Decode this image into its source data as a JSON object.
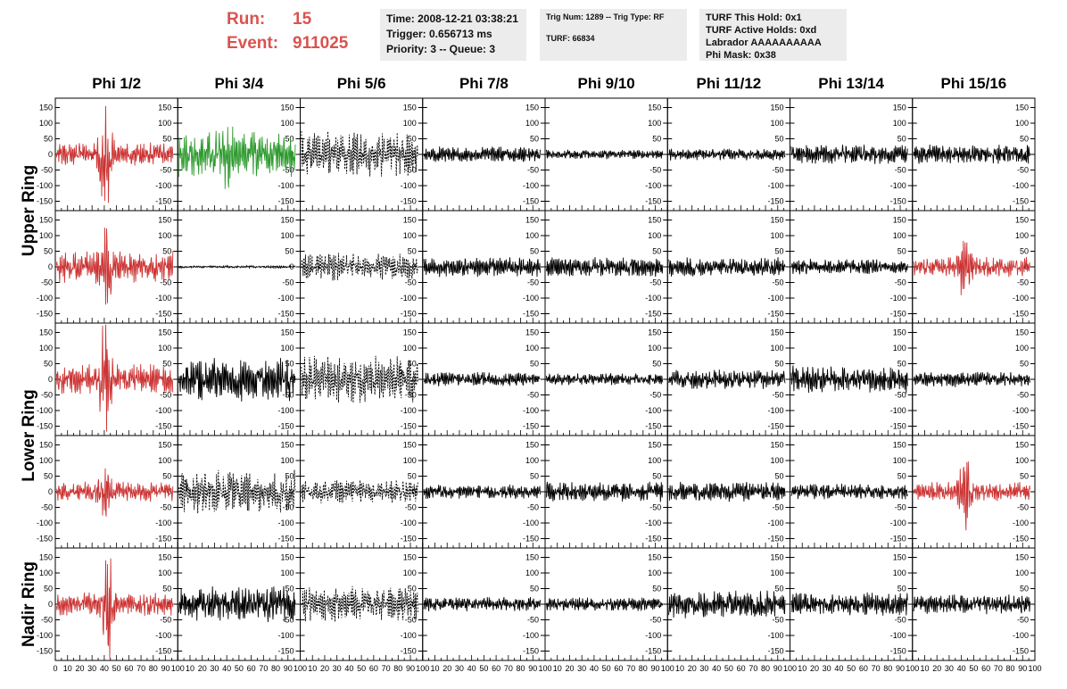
{
  "header": {
    "run_label": "Run:",
    "run_value": "15",
    "event_label": "Event:",
    "event_value": "911025",
    "time": "Time: 2008-12-21 03:38:21",
    "trigger": "Trigger: 0.656713 ms",
    "priority": "Priority: 3 -- Queue: 3",
    "trig_num": "Trig Num: 1289 -- Trig Type: RF",
    "turf": "TURF: 66834",
    "turf_hold": "TURF This Hold: 0x1",
    "turf_active": "TURF Active Holds: 0xd",
    "labrador": "Labrador AAAAAAAAAA",
    "phi_mask": "Phi Mask: 0x38"
  },
  "colors": {
    "red": "#cc3333",
    "green": "#2e9a2e",
    "black": "#000000"
  },
  "chart_data": {
    "type": "line",
    "columns": [
      "Phi 1/2",
      "Phi 3/4",
      "Phi 5/6",
      "Phi 7/8",
      "Phi 9/10",
      "Phi 11/12",
      "Phi 13/14",
      "Phi 15/16"
    ],
    "rows": [
      "Upper Ring",
      "Upper Ring",
      "Lower Ring",
      "Lower Ring",
      "Nadir Ring"
    ],
    "row_labels": [
      "Upper Ring",
      "Lower Ring",
      "Nadir Ring"
    ],
    "xlim": [
      0,
      100
    ],
    "ylim": [
      -180,
      180
    ],
    "y_ticks": [
      -150,
      -100,
      -50,
      0,
      50,
      100,
      150
    ],
    "x_ticks": [
      0,
      10,
      20,
      30,
      40,
      50,
      60,
      70,
      80,
      90,
      100
    ],
    "panels": [
      [
        {
          "color": "red",
          "style": "solid",
          "amp": 30,
          "burst": 130,
          "center": 40,
          "seed": 1
        },
        {
          "color": "green",
          "style": "solid",
          "amp": 60,
          "burst": 40,
          "center": 40,
          "seed": 2
        },
        {
          "color": "black",
          "style": "dashed",
          "amp": 60,
          "burst": 0,
          "center": 50,
          "seed": 3
        },
        {
          "color": "black",
          "style": "solid",
          "amp": 20,
          "burst": 0,
          "center": 50,
          "seed": 4
        },
        {
          "color": "black",
          "style": "solid",
          "amp": 12,
          "burst": 0,
          "center": 50,
          "seed": 5
        },
        {
          "color": "black",
          "style": "solid",
          "amp": 15,
          "burst": 0,
          "center": 50,
          "seed": 6
        },
        {
          "color": "black",
          "style": "solid",
          "amp": 25,
          "burst": 0,
          "center": 50,
          "seed": 7
        },
        {
          "color": "black",
          "style": "solid",
          "amp": 25,
          "burst": 0,
          "center": 50,
          "seed": 8
        }
      ],
      [
        {
          "color": "red",
          "style": "solid",
          "amp": 40,
          "burst": 90,
          "center": 40,
          "seed": 11
        },
        {
          "color": "black",
          "style": "solid",
          "amp": 3,
          "burst": 0,
          "center": 50,
          "seed": 12
        },
        {
          "color": "black",
          "style": "dashed",
          "amp": 35,
          "burst": 0,
          "center": 50,
          "seed": 13
        },
        {
          "color": "black",
          "style": "solid",
          "amp": 25,
          "burst": 0,
          "center": 50,
          "seed": 14
        },
        {
          "color": "black",
          "style": "solid",
          "amp": 25,
          "burst": 0,
          "center": 50,
          "seed": 15
        },
        {
          "color": "black",
          "style": "solid",
          "amp": 25,
          "burst": 0,
          "center": 50,
          "seed": 16
        },
        {
          "color": "black",
          "style": "solid",
          "amp": 20,
          "burst": 0,
          "center": 50,
          "seed": 17
        },
        {
          "color": "red",
          "style": "solid",
          "amp": 25,
          "burst": 90,
          "center": 42,
          "seed": 18
        }
      ],
      [
        {
          "color": "red",
          "style": "solid",
          "amp": 40,
          "burst": 130,
          "center": 40,
          "seed": 21
        },
        {
          "color": "black",
          "style": "solid",
          "amp": 55,
          "burst": 0,
          "center": 50,
          "seed": 22
        },
        {
          "color": "black",
          "style": "dashed",
          "amp": 60,
          "burst": 0,
          "center": 50,
          "seed": 23
        },
        {
          "color": "black",
          "style": "solid",
          "amp": 18,
          "burst": 0,
          "center": 50,
          "seed": 24
        },
        {
          "color": "black",
          "style": "solid",
          "amp": 15,
          "burst": 0,
          "center": 50,
          "seed": 25
        },
        {
          "color": "black",
          "style": "solid",
          "amp": 25,
          "burst": 0,
          "center": 50,
          "seed": 26
        },
        {
          "color": "black",
          "style": "solid",
          "amp": 35,
          "burst": 0,
          "center": 50,
          "seed": 27
        },
        {
          "color": "black",
          "style": "solid",
          "amp": 20,
          "burst": 0,
          "center": 50,
          "seed": 28
        }
      ],
      [
        {
          "color": "red",
          "style": "solid",
          "amp": 25,
          "burst": 80,
          "center": 40,
          "seed": 31
        },
        {
          "color": "black",
          "style": "dashed",
          "amp": 55,
          "burst": 0,
          "center": 50,
          "seed": 32
        },
        {
          "color": "black",
          "style": "dashed",
          "amp": 30,
          "burst": 0,
          "center": 50,
          "seed": 33
        },
        {
          "color": "black",
          "style": "solid",
          "amp": 18,
          "burst": 0,
          "center": 50,
          "seed": 34
        },
        {
          "color": "black",
          "style": "solid",
          "amp": 25,
          "burst": 0,
          "center": 50,
          "seed": 35
        },
        {
          "color": "black",
          "style": "solid",
          "amp": 25,
          "burst": 0,
          "center": 50,
          "seed": 36
        },
        {
          "color": "black",
          "style": "solid",
          "amp": 20,
          "burst": 0,
          "center": 50,
          "seed": 37
        },
        {
          "color": "red",
          "style": "solid",
          "amp": 25,
          "burst": 80,
          "center": 42,
          "seed": 38
        }
      ],
      [
        {
          "color": "red",
          "style": "solid",
          "amp": 30,
          "burst": 140,
          "center": 42,
          "seed": 41
        },
        {
          "color": "black",
          "style": "solid",
          "amp": 45,
          "burst": 0,
          "center": 50,
          "seed": 42
        },
        {
          "color": "black",
          "style": "dashed",
          "amp": 45,
          "burst": 0,
          "center": 50,
          "seed": 43
        },
        {
          "color": "black",
          "style": "solid",
          "amp": 18,
          "burst": 0,
          "center": 50,
          "seed": 44
        },
        {
          "color": "black",
          "style": "solid",
          "amp": 18,
          "burst": 0,
          "center": 50,
          "seed": 45
        },
        {
          "color": "black",
          "style": "solid",
          "amp": 35,
          "burst": 0,
          "center": 50,
          "seed": 46
        },
        {
          "color": "black",
          "style": "solid",
          "amp": 30,
          "burst": 0,
          "center": 50,
          "seed": 47
        },
        {
          "color": "black",
          "style": "solid",
          "amp": 25,
          "burst": 0,
          "center": 50,
          "seed": 48
        }
      ]
    ]
  }
}
